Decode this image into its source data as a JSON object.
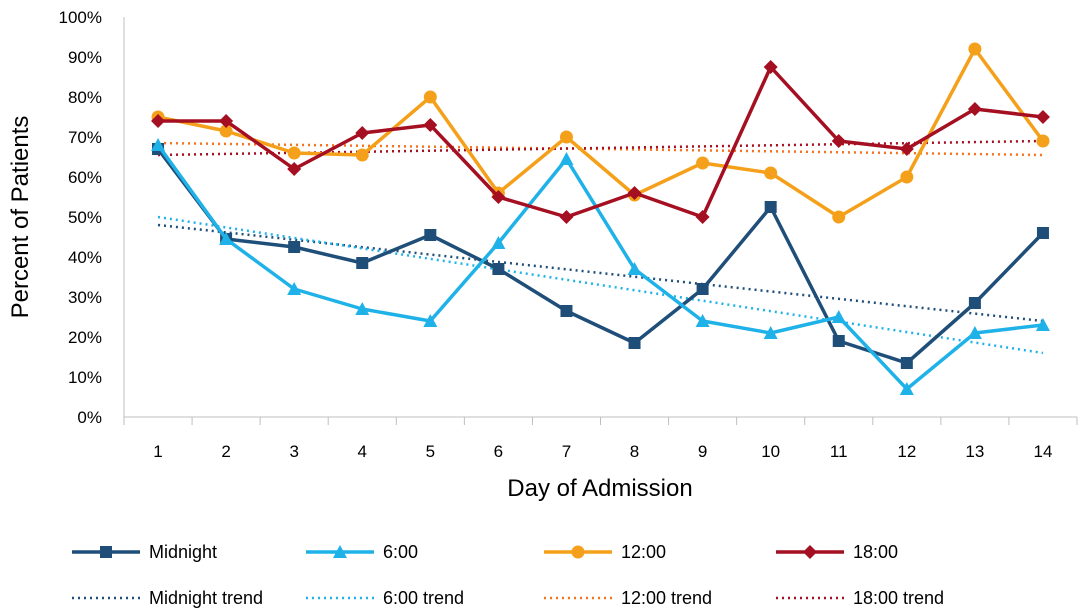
{
  "chart_data": {
    "type": "line",
    "title": "",
    "xlabel": "Day of Admission",
    "ylabel": "Percent of Patients",
    "categories": [
      "1",
      "2",
      "3",
      "4",
      "5",
      "6",
      "7",
      "8",
      "9",
      "10",
      "11",
      "12",
      "13",
      "14"
    ],
    "ylim": [
      0,
      100
    ],
    "yticks": [
      "0%",
      "10%",
      "20%",
      "30%",
      "40%",
      "50%",
      "60%",
      "70%",
      "80%",
      "90%",
      "100%"
    ],
    "grid": false,
    "legend_position": "bottom",
    "series": [
      {
        "name": "Midnight",
        "color": "#1f4e79",
        "marker": "square",
        "values": [
          67,
          44.5,
          42.5,
          38.5,
          45.5,
          37,
          26.5,
          18.5,
          32,
          52.5,
          19,
          13.5,
          28.5,
          46
        ]
      },
      {
        "name": "6:00",
        "color": "#1fb2e8",
        "marker": "triangle",
        "values": [
          68,
          44.5,
          32,
          27,
          24,
          43.5,
          64.5,
          37,
          24,
          21,
          25,
          7,
          21,
          23
        ]
      },
      {
        "name": "12:00",
        "color": "#f5a01a",
        "marker": "circle",
        "values": [
          75,
          71.5,
          66,
          65.5,
          80,
          56,
          70,
          55.5,
          63.5,
          61,
          50,
          60,
          92,
          69
        ]
      },
      {
        "name": "18:00",
        "color": "#a50f22",
        "marker": "diamond",
        "values": [
          74,
          74,
          62,
          71,
          73,
          55,
          50,
          56,
          50,
          87.5,
          69,
          67,
          77,
          75
        ]
      }
    ],
    "trendlines": [
      {
        "name": "Midnight trend",
        "color": "#1f4e79",
        "start": 48,
        "end": 24
      },
      {
        "name": "6:00 trend",
        "color": "#1fb2e8",
        "start": 50,
        "end": 16
      },
      {
        "name": "12:00 trend",
        "color": "#f5731f",
        "start": 68.5,
        "end": 65.5
      },
      {
        "name": "18:00 trend",
        "color": "#a50f22",
        "start": 65.5,
        "end": 69
      }
    ]
  }
}
